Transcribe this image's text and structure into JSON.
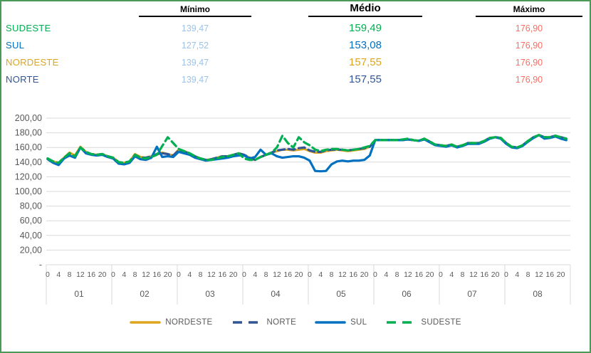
{
  "table": {
    "columns": [
      {
        "label": "Mínimo"
      },
      {
        "label": "Médio"
      },
      {
        "label": "Máximo"
      }
    ],
    "rows": [
      {
        "region": "SUDESTE",
        "color": "#00b050",
        "minimo": "139,47",
        "medio": "159,49",
        "maximo": "176,90"
      },
      {
        "region": "SUL",
        "color": "#0070c0",
        "minimo": "127,52",
        "medio": "153,08",
        "maximo": "176,90"
      },
      {
        "region": "NORDESTE",
        "color": "#dfa51e",
        "minimo": "139,47",
        "medio": "157,55",
        "maximo": "176,90"
      },
      {
        "region": "NORTE",
        "color": "#2f5597",
        "minimo": "139,47",
        "medio": "157,55",
        "maximo": "176,90"
      }
    ],
    "value_colors": {
      "minimo": "#9dc3e6",
      "maximo": "#f96e65"
    }
  },
  "chart_data": {
    "type": "line",
    "title": "",
    "xlabel": "",
    "ylabel": "",
    "ylim": [
      0,
      200
    ],
    "ytick_step": 20,
    "ytick_labels": [
      "-",
      "20,00",
      "40,00",
      "60,00",
      "80,00",
      "100,00",
      "120,00",
      "140,00",
      "160,00",
      "180,00",
      "200,00"
    ],
    "grid": true,
    "legend_position": "bottom",
    "days": [
      "01",
      "02",
      "03",
      "04",
      "05",
      "06",
      "07",
      "08"
    ],
    "hour_ticks": [
      "0",
      "4",
      "8",
      "12",
      "16",
      "20"
    ],
    "hours_per_point": 2,
    "series": [
      {
        "name": "NORDESTE",
        "color": "#dfa51e",
        "dash": "solid",
        "values": [
          145,
          141,
          139,
          146,
          153,
          149,
          161,
          154,
          151,
          150,
          151,
          148,
          146,
          140,
          139,
          141,
          151,
          147,
          146,
          148,
          151,
          153,
          151,
          149,
          157,
          155,
          152,
          148,
          145,
          143,
          144,
          146,
          148,
          148,
          150,
          152,
          150,
          146,
          143,
          147,
          150,
          153,
          155,
          157,
          157,
          156,
          157,
          158,
          155,
          153,
          153,
          155,
          156,
          157,
          156,
          155,
          156,
          157,
          158,
          161,
          170,
          170,
          170,
          170,
          170,
          170,
          171,
          170,
          169,
          172,
          168,
          164,
          163,
          162,
          164,
          161,
          163,
          166,
          166,
          166,
          169,
          173,
          174,
          173,
          166,
          161,
          160,
          163,
          169,
          174,
          176.9,
          174,
          174,
          176,
          174,
          172
        ]
      },
      {
        "name": "NORTE",
        "color": "#2f5597",
        "dash": "dashed",
        "values": [
          145,
          141,
          139,
          146,
          152,
          148,
          160,
          154,
          151,
          150,
          151,
          148,
          146,
          140,
          139,
          141,
          150,
          146,
          146,
          148,
          151,
          152,
          151,
          149,
          156,
          154,
          152,
          148,
          145,
          143,
          144,
          146,
          148,
          148,
          150,
          152,
          150,
          146,
          143,
          147,
          150,
          153,
          156,
          157,
          158,
          157,
          159,
          160,
          156,
          154,
          154,
          156,
          157,
          157,
          157,
          156,
          157,
          158,
          159,
          161,
          170,
          170,
          170,
          170,
          170,
          170,
          171,
          170,
          169,
          172,
          168,
          164,
          163,
          162,
          164,
          161,
          163,
          166,
          166,
          166,
          169,
          173,
          174,
          173,
          166,
          161,
          160,
          163,
          169,
          174,
          176.9,
          174,
          174,
          176,
          174,
          172
        ]
      },
      {
        "name": "SUL",
        "color": "#0070c0",
        "dash": "solid",
        "values": [
          144,
          139,
          136,
          145,
          149,
          146,
          160,
          152,
          150,
          149,
          150,
          147,
          145,
          138,
          137,
          139,
          148,
          144,
          143,
          146,
          161,
          147,
          148,
          147,
          154,
          152,
          150,
          146,
          144,
          142,
          143,
          144,
          145,
          146,
          148,
          149,
          149,
          145,
          147,
          157,
          150,
          152,
          148,
          146,
          147,
          148,
          148,
          146,
          142,
          128,
          127.5,
          128,
          137,
          141,
          142,
          141,
          142,
          142,
          143,
          149,
          170,
          170,
          170,
          170,
          170,
          170,
          171,
          170,
          169,
          171,
          167,
          163,
          162,
          161,
          163,
          160,
          162,
          165,
          165,
          165,
          168,
          172,
          174,
          172,
          165,
          160,
          159,
          162,
          168,
          173,
          176.9,
          172,
          173,
          175,
          172,
          170
        ]
      },
      {
        "name": "SUDESTE",
        "color": "#00b050",
        "dash": "dashed",
        "values": [
          145,
          141,
          139,
          146,
          152,
          148,
          160,
          154,
          151,
          150,
          151,
          148,
          146,
          140,
          139,
          141,
          150,
          146,
          145,
          147,
          150,
          162,
          174,
          166,
          158,
          155,
          152,
          148,
          145,
          143,
          143,
          145,
          147,
          148,
          150,
          152,
          145,
          143,
          143,
          147,
          150,
          153,
          160,
          176,
          166,
          160,
          174,
          167,
          163,
          157,
          155,
          157,
          158,
          158,
          157,
          156,
          157,
          158,
          160,
          162,
          170,
          170,
          170,
          170,
          170,
          171,
          172,
          170,
          169,
          172,
          168,
          164,
          163,
          162,
          164,
          161,
          163,
          166,
          166,
          166,
          169,
          173,
          174,
          173,
          166,
          161,
          160,
          163,
          169,
          174,
          176.9,
          174,
          174,
          176,
          174,
          172
        ]
      }
    ]
  },
  "frame_border_color": "#4c9a58",
  "grid_color": "#d9d9d9",
  "axis_text_color": "#595959"
}
